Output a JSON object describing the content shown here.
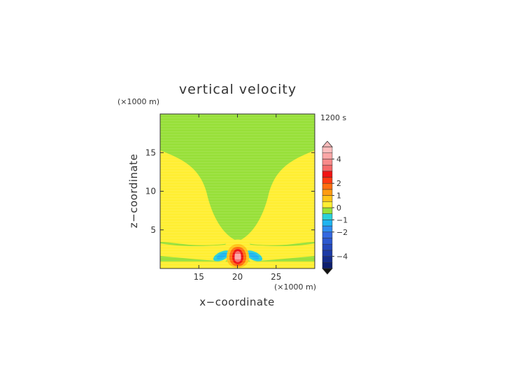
{
  "chart_data": {
    "type": "heatmap",
    "title": "vertical velocity",
    "xlabel": "x−coordinate",
    "ylabel": "z−coordinate",
    "x_unit": "(×1000 m)",
    "y_unit": "(×1000 m)",
    "time_label": "1200 s",
    "xlim": [
      10,
      30
    ],
    "ylim": [
      0,
      20
    ],
    "x_ticks": [
      15,
      20,
      25
    ],
    "y_ticks": [
      5,
      10,
      15
    ],
    "colorbar": {
      "range": [
        -5,
        5
      ],
      "tick_values": [
        4,
        2,
        1,
        0,
        -1,
        -2,
        -4
      ],
      "tick_labels": [
        "4",
        "2",
        "1",
        "0",
        "−1",
        "−2",
        "−4"
      ],
      "levels": [
        {
          "from": -5.0,
          "to": -4.5,
          "color": "#0d1e6e"
        },
        {
          "from": -4.5,
          "to": -4.0,
          "color": "#142c8a"
        },
        {
          "from": -4.0,
          "to": -3.5,
          "color": "#1c3aa6"
        },
        {
          "from": -3.5,
          "to": -3.0,
          "color": "#2448bb"
        },
        {
          "from": -3.0,
          "to": -2.5,
          "color": "#2c58cf"
        },
        {
          "from": -2.5,
          "to": -2.0,
          "color": "#3468e0"
        },
        {
          "from": -2.0,
          "to": -1.5,
          "color": "#2f8cf0"
        },
        {
          "from": -1.5,
          "to": -1.0,
          "color": "#1fb4f0"
        },
        {
          "from": -1.0,
          "to": -0.5,
          "color": "#2bd0d8"
        },
        {
          "from": -0.5,
          "to": 0.0,
          "color": "#98e03a"
        },
        {
          "from": 0.0,
          "to": 0.5,
          "color": "#ffee33"
        },
        {
          "from": 0.5,
          "to": 1.0,
          "color": "#ffc419"
        },
        {
          "from": 1.0,
          "to": 1.5,
          "color": "#ff9b12"
        },
        {
          "from": 1.5,
          "to": 2.0,
          "color": "#ff6e10"
        },
        {
          "from": 2.0,
          "to": 2.5,
          "color": "#ff3a12"
        },
        {
          "from": 2.5,
          "to": 3.0,
          "color": "#f01414"
        },
        {
          "from": 3.0,
          "to": 3.5,
          "color": "#f46a6a"
        },
        {
          "from": 3.5,
          "to": 4.0,
          "color": "#f88a8a"
        },
        {
          "from": 4.0,
          "to": 4.5,
          "color": "#fba6a6"
        },
        {
          "from": 4.5,
          "to": 5.0,
          "color": "#fdbdbd"
        }
      ]
    },
    "field_regions": [
      {
        "name": "background",
        "level": -0.25,
        "color": "#98e03a"
      },
      {
        "name": "upper-positive-lobes",
        "level": 0.25,
        "color": "#ffee33"
      },
      {
        "name": "low-positive-band",
        "level": 0.25,
        "color": "#ffee33"
      },
      {
        "name": "updraft-core",
        "center": [
          20,
          1.8
        ],
        "peak": 3.5
      },
      {
        "name": "downdraft-left",
        "center": [
          18,
          1.5
        ],
        "peak": -1.5
      },
      {
        "name": "downdraft-right",
        "center": [
          22,
          1.5
        ],
        "peak": -1.5
      }
    ]
  }
}
